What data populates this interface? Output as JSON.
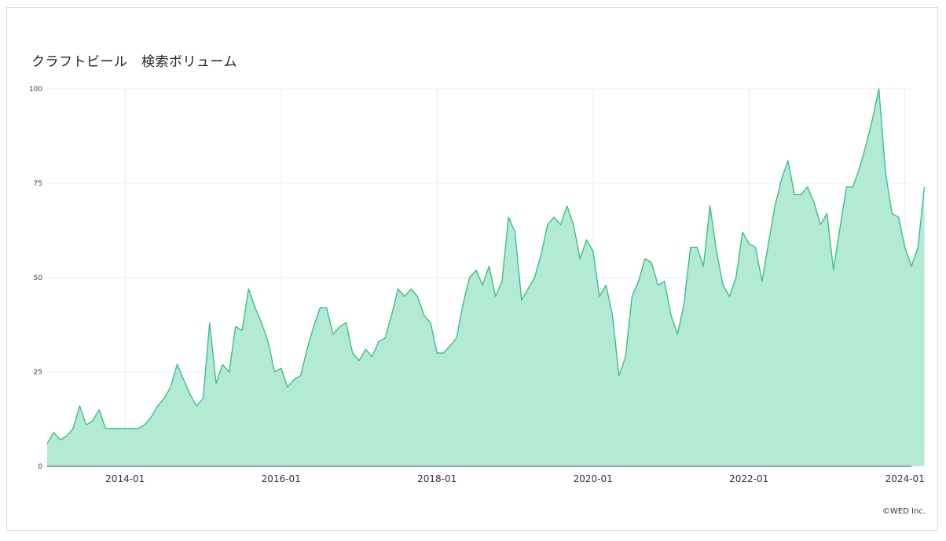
{
  "title": "クラフトビール　検索ボリューム",
  "credit": "©WED Inc.",
  "colors": {
    "area_fill": "#b3ead4",
    "line": "#3cbf87",
    "grid": "#ececec"
  },
  "chart_data": {
    "type": "area",
    "title": "クラフトビール　検索ボリューム",
    "xlabel": "",
    "ylabel": "",
    "ylim": [
      0,
      100
    ],
    "yticks": [
      0,
      25,
      50,
      75,
      100
    ],
    "xlim": [
      "2013-01",
      "2024-02"
    ],
    "xticks": [
      "2014-01",
      "2016-01",
      "2018-01",
      "2020-01",
      "2022-01",
      "2024-01"
    ],
    "grid": true,
    "legend": "none",
    "frequency": "monthly",
    "start": "2013-01",
    "values": [
      6,
      9,
      7,
      8,
      10,
      16,
      11,
      12,
      15,
      10,
      10,
      10,
      10,
      10,
      10,
      11,
      13,
      16,
      18,
      21,
      27,
      23,
      19,
      16,
      18,
      38,
      22,
      27,
      25,
      37,
      36,
      47,
      42,
      38,
      33,
      25,
      26,
      21,
      23,
      24,
      31,
      37,
      42,
      42,
      35,
      37,
      38,
      30,
      28,
      31,
      29,
      33,
      34,
      40,
      47,
      45,
      47,
      45,
      40,
      38,
      30,
      30,
      32,
      34,
      43,
      50,
      52,
      48,
      53,
      45,
      49,
      66,
      62,
      44,
      47,
      50,
      56,
      64,
      66,
      64,
      69,
      64,
      55,
      60,
      57,
      45,
      48,
      40,
      24,
      29,
      45,
      49,
      55,
      54,
      48,
      49,
      40,
      35,
      43,
      58,
      58,
      53,
      69,
      57,
      48,
      45,
      50,
      62,
      59,
      58,
      49,
      59,
      69,
      76,
      81,
      72,
      72,
      74,
      70,
      64,
      67,
      52,
      63,
      74,
      74,
      79,
      85,
      92,
      100,
      78,
      67,
      66,
      58,
      53,
      58,
      74
    ]
  }
}
